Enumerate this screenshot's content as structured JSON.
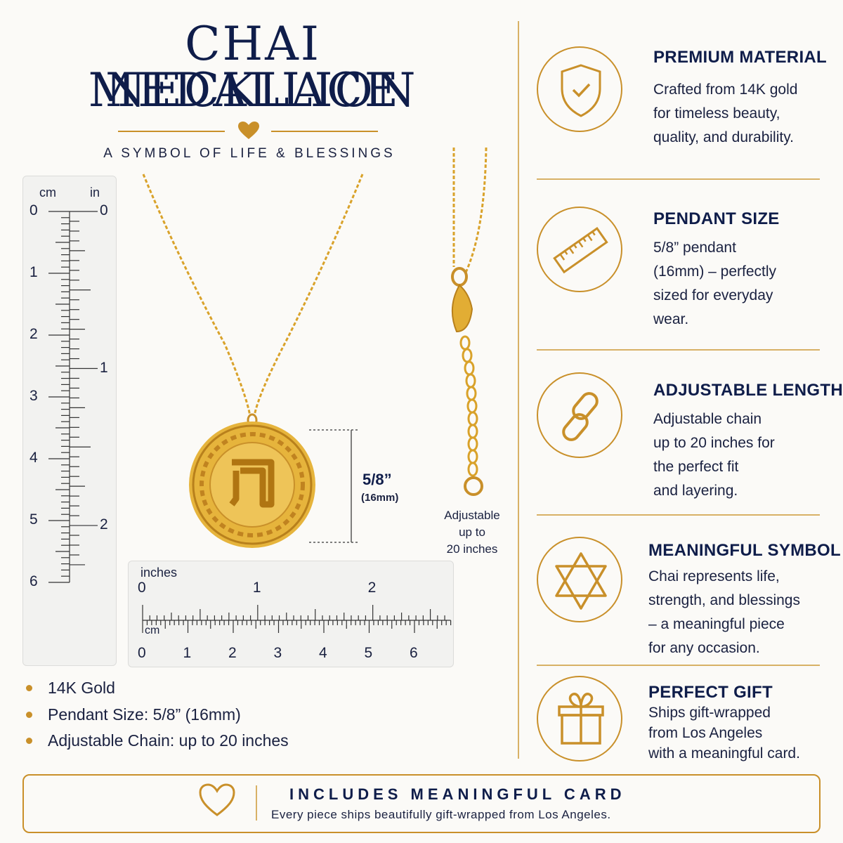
{
  "header": {
    "title_line1": "CHAI MEDALLION",
    "title_line2": "NECKLACE",
    "subtitle": "A SYMBOL OF LIFE & BLESSINGS"
  },
  "ruler_vertical": {
    "unit_left": "cm",
    "unit_right": "in",
    "cm_marks": [
      "0",
      "1",
      "2",
      "3",
      "4",
      "5",
      "6"
    ],
    "in_marks": [
      "0",
      "1",
      "2"
    ]
  },
  "ruler_horizontal": {
    "unit_top": "inches",
    "unit_bottom": "cm",
    "in_marks": [
      "0",
      "1",
      "2"
    ],
    "cm_marks": [
      "0",
      "1",
      "2",
      "3",
      "4",
      "5",
      "6"
    ]
  },
  "pendant_dimension": {
    "size": "5/8”",
    "size_mm": "(16mm)"
  },
  "chain_note": {
    "line1": "Adjustable",
    "line2": "up to",
    "line3": "20 inches"
  },
  "bullets": [
    "14K Gold",
    "Pendant Size: 5/8” (16mm)",
    "Adjustable Chain: up to 20 inches"
  ],
  "features": [
    {
      "icon": "shield-check-icon",
      "title": "PREMIUM MATERIAL",
      "lines": [
        "Crafted from 14K gold",
        "for timeless beauty,",
        "quality, and durability."
      ]
    },
    {
      "icon": "ruler-icon",
      "title": "PENDANT SIZE",
      "lines": [
        "5/8” pendant",
        "(16mm) – perfectly",
        "sized for everyday",
        "wear."
      ]
    },
    {
      "icon": "chain-link-icon",
      "title": "ADJUSTABLE LENGTH",
      "lines": [
        "Adjustable chain",
        "up to 20 inches for",
        "the perfect fit",
        "and layering."
      ]
    },
    {
      "icon": "star-of-david-icon",
      "title": "MEANINGFUL SYMBOL",
      "lines": [
        "Chai represents life,",
        "strength, and blessings",
        "– a meaningful piece",
        "for any occasion."
      ]
    },
    {
      "icon": "gift-icon",
      "title": "PERFECT GIFT",
      "lines": [
        "Ships gift-wrapped",
        "from Los Angeles",
        "with a meaningful card."
      ]
    }
  ],
  "card_banner": {
    "icon": "heart-icon",
    "title": "INCLUDES MEANINGFUL CARD",
    "subtitle": "Every piece ships beautifully gift-wrapped from Los Angeles."
  },
  "colors": {
    "navy": "#0f1d4a",
    "gold": "#c9902a",
    "background": "#fbfaf7"
  }
}
